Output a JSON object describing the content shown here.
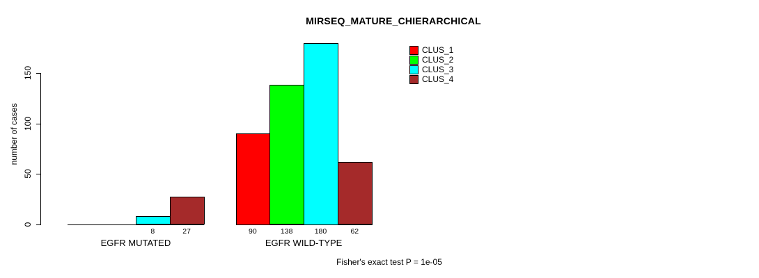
{
  "chart_data": {
    "type": "bar",
    "title": "MIRSEQ_MATURE_CHIERARCHICAL",
    "ylabel": "number of cases",
    "xlabel": "",
    "annotation": "Fisher's exact test P = 1e-05",
    "categories": [
      "EGFR MUTATED",
      "EGFR WILD-TYPE"
    ],
    "series": [
      {
        "name": "CLUS_1",
        "color": "#FF0000",
        "values": [
          0,
          90
        ]
      },
      {
        "name": "CLUS_2",
        "color": "#00FF00",
        "values": [
          0,
          138
        ]
      },
      {
        "name": "CLUS_3",
        "color": "#00FFFF",
        "values": [
          8,
          180
        ]
      },
      {
        "name": "CLUS_4",
        "color": "#A52A2A",
        "values": [
          27,
          62
        ]
      }
    ],
    "value_labels": [
      [
        "",
        "",
        "8",
        "27"
      ],
      [
        "90",
        "138",
        "180",
        "62"
      ]
    ],
    "yticks": [
      0,
      50,
      100,
      150
    ],
    "ylim": [
      0,
      195
    ],
    "grid": false,
    "legend_position": "inside-top-right",
    "axis_color": "#000000",
    "text_color": "#000000",
    "background": "#FFFFFF"
  }
}
